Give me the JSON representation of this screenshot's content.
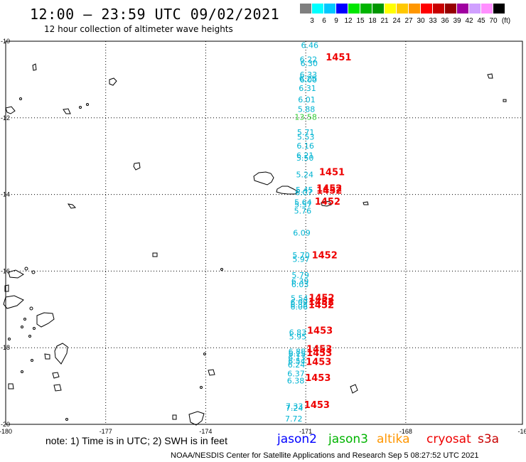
{
  "header": {
    "title": "12:00 – 23:59 UTC 09/02/2021",
    "subtitle": "12 hour collection of altimeter wave heights"
  },
  "color_scale": {
    "unit": "(ft)",
    "labels": [
      "3",
      "6",
      "9",
      "12",
      "15",
      "18",
      "21",
      "24",
      "27",
      "30",
      "33",
      "36",
      "39",
      "42",
      "45",
      "70"
    ],
    "colors": [
      "#7f7f7f",
      "#00ffff",
      "#00c8ff",
      "#0000ff",
      "#00e600",
      "#00b400",
      "#009600",
      "#ffff00",
      "#ffc800",
      "#ff9600",
      "#ff0000",
      "#c80000",
      "#960000",
      "#a000a0",
      "#d0a0ff",
      "#ff90ff",
      "#000000"
    ]
  },
  "map": {
    "lon_ticks": [
      "-180",
      "-177",
      "-174",
      "-171",
      "-168",
      "-16"
    ],
    "lat_ticks": [
      "-10",
      "-12",
      "-14",
      "-16",
      "-18",
      "-20"
    ],
    "track_color": "#00b4d2",
    "highlight_color": "#33cc33",
    "time_color": "#ee0000",
    "wave_heights": [
      {
        "v": "6.46",
        "lat": -10.18,
        "lon": -170.88
      },
      {
        "v": "6.22",
        "lat": -10.55,
        "lon": -170.92
      },
      {
        "v": "6.30",
        "lat": -10.65,
        "lon": -170.9
      },
      {
        "v": "6.33",
        "lat": -10.95,
        "lon": -170.92
      },
      {
        "v": "6.25",
        "lat": -11.05,
        "lon": -170.94
      },
      {
        "v": "6.00",
        "lat": -11.08,
        "lon": -170.92
      },
      {
        "v": "6.31",
        "lat": -11.3,
        "lon": -170.95
      },
      {
        "v": "6.01",
        "lat": -11.6,
        "lon": -170.97
      },
      {
        "v": "5.88",
        "lat": -11.85,
        "lon": -170.98
      },
      {
        "v": "13.58",
        "lat": -12.05,
        "lon": -171.0,
        "hl": true
      },
      {
        "v": "5.71",
        "lat": -12.45,
        "lon": -171.0
      },
      {
        "v": "5.53",
        "lat": -12.57,
        "lon": -171.0
      },
      {
        "v": "6.16",
        "lat": -12.8,
        "lon": -171.01
      },
      {
        "v": "6.21",
        "lat": -13.05,
        "lon": -171.02
      },
      {
        "v": "5.50",
        "lat": -13.12,
        "lon": -171.02
      },
      {
        "v": "5.24",
        "lat": -13.55,
        "lon": -171.03
      },
      {
        "v": "5.45",
        "lat": -13.95,
        "lon": -171.04
      },
      {
        "v": "6.07",
        "lat": -14.02,
        "lon": -171.06
      },
      {
        "v": "5.64",
        "lat": -14.28,
        "lon": -171.08
      },
      {
        "v": "5.57",
        "lat": -14.33,
        "lon": -171.08
      },
      {
        "v": "5.76",
        "lat": -14.5,
        "lon": -171.09
      },
      {
        "v": "6.09",
        "lat": -15.07,
        "lon": -171.12
      },
      {
        "v": "5.70",
        "lat": -15.66,
        "lon": -171.14
      },
      {
        "v": "5.97",
        "lat": -15.76,
        "lon": -171.14
      },
      {
        "v": "5.79",
        "lat": -16.18,
        "lon": -171.16
      },
      {
        "v": "6.39",
        "lat": -16.34,
        "lon": -171.17
      },
      {
        "v": "6.03",
        "lat": -16.42,
        "lon": -171.17
      },
      {
        "v": "5.54",
        "lat": -16.78,
        "lon": -171.19
      },
      {
        "v": "6.09",
        "lat": -16.88,
        "lon": -171.2
      },
      {
        "v": "6.35",
        "lat": -16.95,
        "lon": -171.2
      },
      {
        "v": "6.06",
        "lat": -17.0,
        "lon": -171.2
      },
      {
        "v": "6.83",
        "lat": -17.67,
        "lon": -171.24
      },
      {
        "v": "5.95",
        "lat": -17.78,
        "lon": -171.24
      },
      {
        "v": "6.88",
        "lat": -18.17,
        "lon": -171.26
      },
      {
        "v": "6.15",
        "lat": -18.23,
        "lon": -171.26
      },
      {
        "v": "6.13",
        "lat": -18.33,
        "lon": -171.27
      },
      {
        "v": "6.54",
        "lat": -18.42,
        "lon": -171.27
      },
      {
        "v": "6.24",
        "lat": -18.52,
        "lon": -171.28
      },
      {
        "v": "6.37",
        "lat": -18.75,
        "lon": -171.29
      },
      {
        "v": "6.38",
        "lat": -18.93,
        "lon": -171.3
      },
      {
        "v": "7.33",
        "lat": -19.6,
        "lon": -171.34
      },
      {
        "v": "7.24",
        "lat": -19.65,
        "lon": -171.34
      },
      {
        "v": "7.72",
        "lat": -19.93,
        "lon": -171.36
      }
    ],
    "pass_times": [
      {
        "v": "1451",
        "lat": -10.5,
        "lon": -170.4
      },
      {
        "v": "1451",
        "lat": -13.5,
        "lon": -170.6
      },
      {
        "v": "1452",
        "lat": -13.92,
        "lon": -170.68
      },
      {
        "v": "1452",
        "lat": -13.98,
        "lon": -170.68
      },
      {
        "v": "1452",
        "lat": -14.27,
        "lon": -170.73
      },
      {
        "v": "1452",
        "lat": -15.67,
        "lon": -170.82
      },
      {
        "v": "1452",
        "lat": -16.78,
        "lon": -170.91
      },
      {
        "v": "1452",
        "lat": -16.88,
        "lon": -170.92
      },
      {
        "v": "1452",
        "lat": -16.97,
        "lon": -170.92
      },
      {
        "v": "1453",
        "lat": -17.63,
        "lon": -170.96
      },
      {
        "v": "1453",
        "lat": -18.12,
        "lon": -170.98
      },
      {
        "v": "1453",
        "lat": -18.22,
        "lon": -170.98
      },
      {
        "v": "1453",
        "lat": -18.45,
        "lon": -171.0
      },
      {
        "v": "1453",
        "lat": -18.87,
        "lon": -171.02
      },
      {
        "v": "1453",
        "lat": -19.57,
        "lon": -171.05
      }
    ]
  },
  "footer": {
    "note": "note:  1) Time is in UTC;  2) SWH is in feet",
    "satellites": [
      {
        "name": "jason2",
        "color": "#0000ff"
      },
      {
        "name": "jason3",
        "color": "#00b400"
      },
      {
        "name": "altika",
        "color": "#ff9600"
      },
      {
        "name": "cryosat",
        "color": "#ee0000"
      },
      {
        "name": "s3a",
        "color": "#c80000"
      }
    ],
    "credit": "NOAA/NESDIS Center for Satellite Applications and Research      Sep  5 08:27:52 UTC 2021"
  }
}
